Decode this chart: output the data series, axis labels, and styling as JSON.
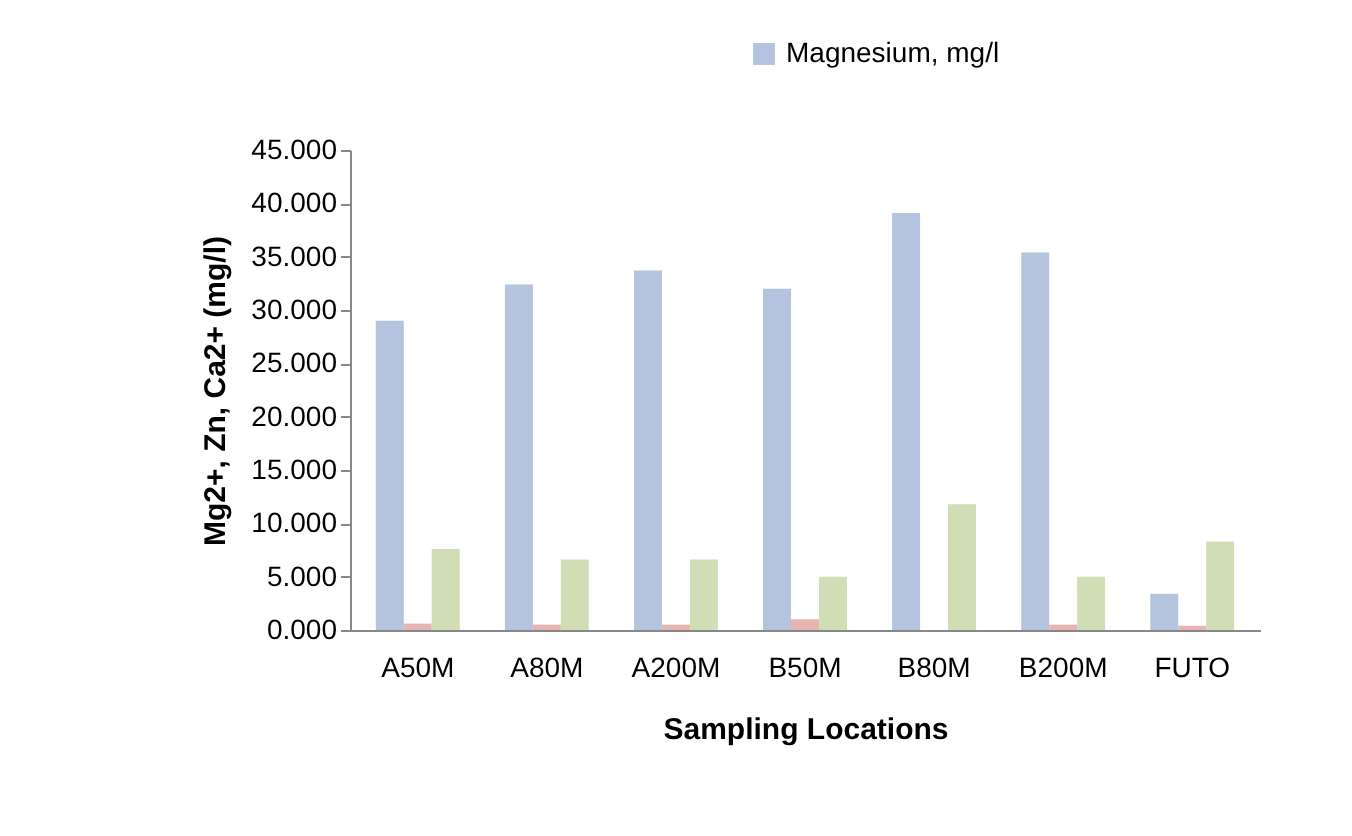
{
  "chart_data": {
    "type": "bar",
    "xlabel": "Sampling Locations",
    "ylabel": "Mg2+, Zn, Ca2+ (mg/l)",
    "categories": [
      "A50M",
      "A80M",
      "A200M",
      "B50M",
      "B80M",
      "B200M",
      "FUTO"
    ],
    "series": [
      {
        "name": "Magnesium,  mg/l",
        "color": "#b4c3de",
        "values": [
          29.0,
          32.4,
          33.7,
          32.0,
          39.1,
          35.4,
          3.4
        ]
      },
      {
        "color": "#e6b5b3",
        "values": [
          0.6,
          0.5,
          0.5,
          1.0,
          0,
          0.5,
          0.4
        ]
      },
      {
        "color": "#d0ddb5",
        "values": [
          7.6,
          6.6,
          6.6,
          5.0,
          11.8,
          5.0,
          8.3
        ]
      }
    ],
    "ylim": [
      0,
      45
    ],
    "yticks": [
      {
        "value": 0,
        "label": "0.000"
      },
      {
        "value": 5,
        "label": "5.000"
      },
      {
        "value": 10,
        "label": "10.000"
      },
      {
        "value": 15,
        "label": "15.000"
      },
      {
        "value": 20,
        "label": "20.000"
      },
      {
        "value": 25,
        "label": "25.000"
      },
      {
        "value": 30,
        "label": "30.000"
      },
      {
        "value": 35,
        "label": "35.000"
      },
      {
        "value": 40,
        "label": "40.000"
      },
      {
        "value": 45,
        "label": "45.000"
      }
    ],
    "grid": false,
    "legend": "top right"
  }
}
